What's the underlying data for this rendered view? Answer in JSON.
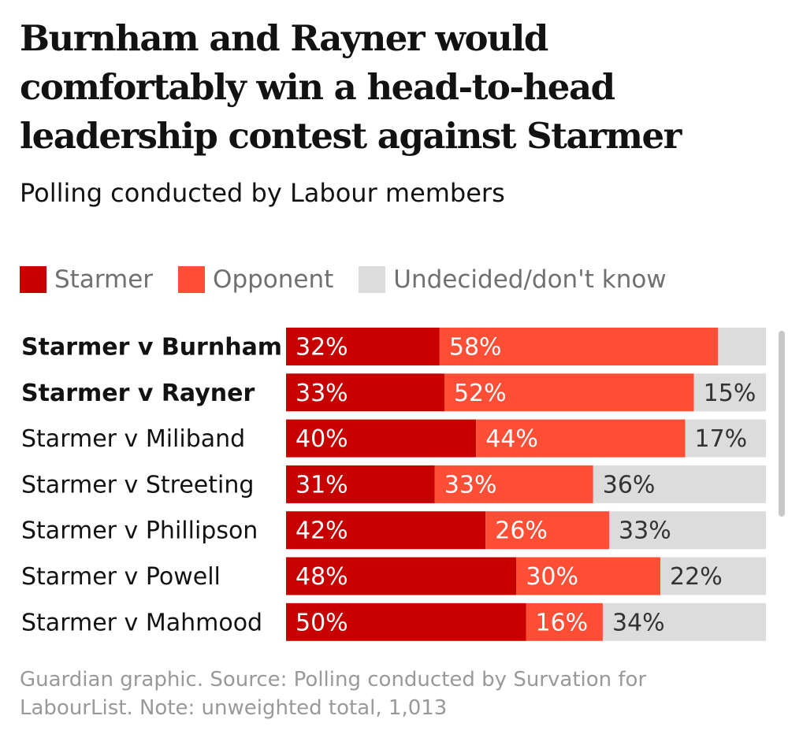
{
  "chart_data": {
    "type": "stacked-bar",
    "orientation": "horizontal",
    "title": "Burnham and Rayner would comfortably win a head-to-head leadership contest against Starmer",
    "subtitle": "Polling conducted by Labour members",
    "categories": [
      "Starmer v Burnham",
      "Starmer v Rayner",
      "Starmer v Miliband",
      "Starmer v Streeting",
      "Starmer v Phillipson",
      "Starmer v Powell",
      "Starmer v Mahmood"
    ],
    "bold": [
      true,
      true,
      false,
      false,
      false,
      false,
      false
    ],
    "series": [
      {
        "name": "Starmer",
        "color": "#c70000",
        "values": [
          32,
          33,
          40,
          31,
          42,
          48,
          50
        ],
        "value_labels": [
          "32%",
          "33%",
          "40%",
          "31%",
          "42%",
          "48%",
          "50%"
        ]
      },
      {
        "name": "Opponent",
        "color": "#ff4e36",
        "values": [
          58,
          52,
          44,
          33,
          26,
          30,
          16
        ],
        "value_labels": [
          "58%",
          "52%",
          "44%",
          "33%",
          "26%",
          "30%",
          "16%"
        ]
      },
      {
        "name": "Undecided/don't know",
        "color": "#dcdcdc",
        "values": [
          10,
          15,
          17,
          36,
          33,
          22,
          34
        ],
        "value_labels": [
          null,
          "15%",
          "17%",
          "36%",
          "33%",
          "22%",
          "34%"
        ]
      }
    ],
    "source": "Guardian graphic. Source: Polling conducted by Survation for LabourList. Note: unweighted total, 1,013"
  }
}
